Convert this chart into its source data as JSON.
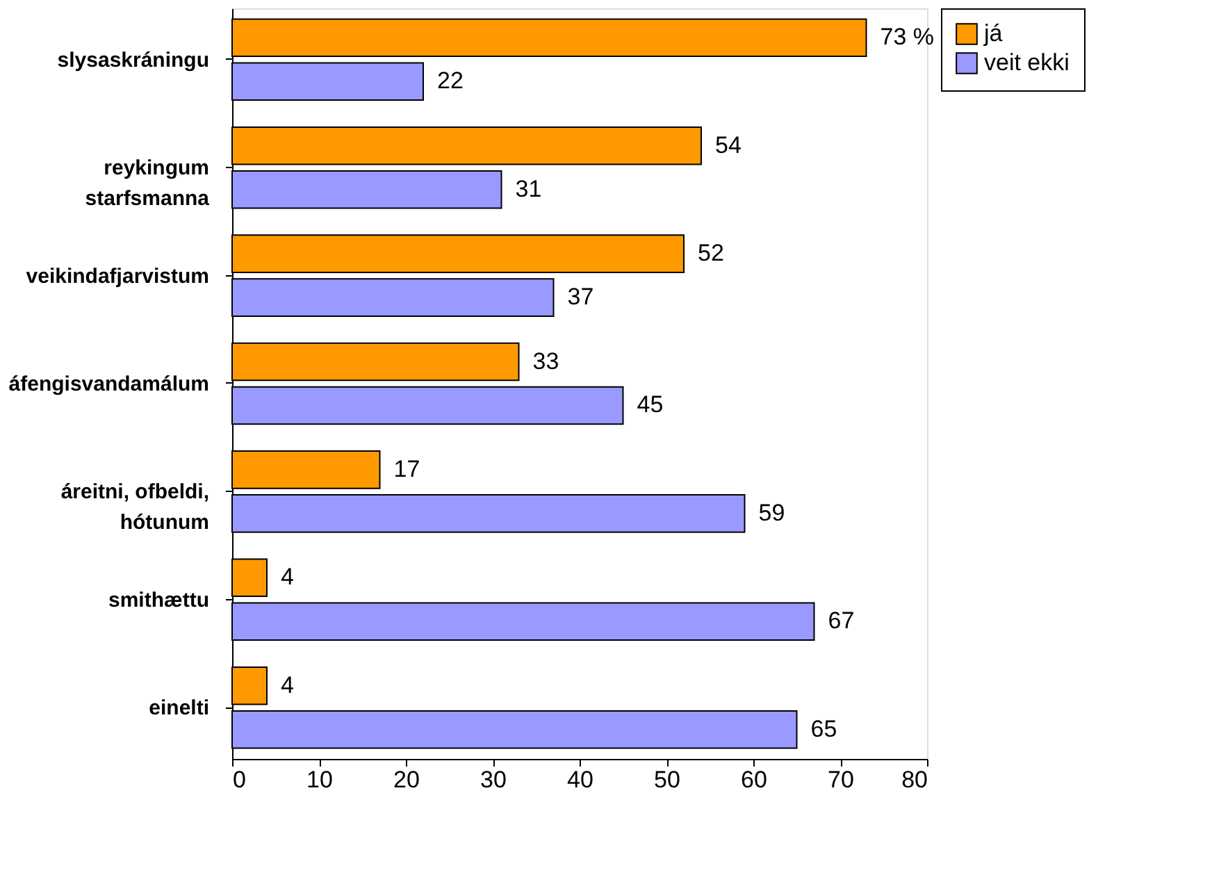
{
  "chart_data": {
    "type": "bar",
    "orientation": "horizontal",
    "categories": [
      "slysaskráningu",
      "reykingum\nstarfsmanna",
      "veikindafjarvistum",
      "áfengisvandamálum",
      "áreitni, ofbeldi,\nhótunum",
      "smithættu",
      "einelti"
    ],
    "series": [
      {
        "name": "já",
        "color": "#ff9900",
        "values": [
          73,
          54,
          52,
          33,
          17,
          4,
          4
        ],
        "value_labels": [
          "73 %",
          "54",
          "52",
          "33",
          "17",
          "4",
          "4"
        ]
      },
      {
        "name": "veit ekki",
        "color": "#9999ff",
        "values": [
          22,
          31,
          37,
          45,
          59,
          67,
          65
        ]
      }
    ],
    "xlim": [
      0,
      80
    ],
    "xticks": [
      0,
      10,
      20,
      30,
      40,
      50,
      60,
      70,
      80
    ],
    "data_labels": true,
    "grid": false,
    "legend": "right"
  }
}
